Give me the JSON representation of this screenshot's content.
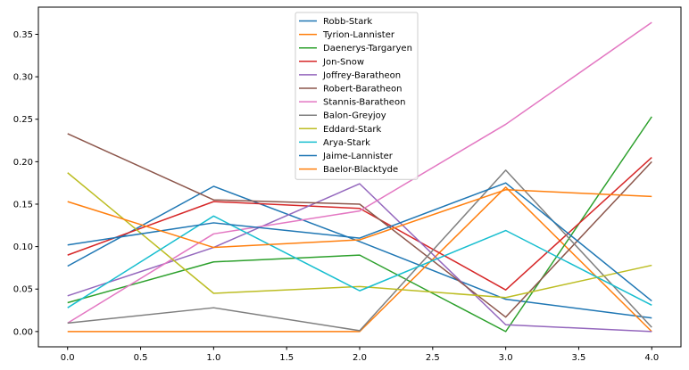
{
  "chart_data": {
    "type": "line",
    "title": "",
    "xlabel": "",
    "ylabel": "",
    "x": [
      0,
      1,
      2,
      3,
      4
    ],
    "xlim": [
      -0.2,
      4.2
    ],
    "ylim": [
      -0.018,
      0.382
    ],
    "xticks": [
      0.0,
      0.5,
      1.0,
      1.5,
      2.0,
      2.5,
      3.0,
      3.5,
      4.0
    ],
    "xtick_labels": [
      "0.0",
      "0.5",
      "1.0",
      "1.5",
      "2.0",
      "2.5",
      "3.0",
      "3.5",
      "4.0"
    ],
    "yticks": [
      0.0,
      0.05,
      0.1,
      0.15,
      0.2,
      0.25,
      0.3,
      0.35
    ],
    "ytick_labels": [
      "0.00",
      "0.05",
      "0.10",
      "0.15",
      "0.20",
      "0.25",
      "0.30",
      "0.35"
    ],
    "grid": false,
    "legend_position": "top-center",
    "series": [
      {
        "name": "Robb-Stark",
        "color": "#1f77b4",
        "values": [
          0.077,
          0.171,
          0.106,
          0.038,
          0.016
        ]
      },
      {
        "name": "Tyrion-Lannister",
        "color": "#ff7f0e",
        "values": [
          0.0,
          0.0,
          0.0,
          0.17,
          0.0
        ]
      },
      {
        "name": "Daenerys-Targaryen",
        "color": "#2ca02c",
        "values": [
          0.034,
          0.082,
          0.09,
          0.0,
          0.253
        ]
      },
      {
        "name": "Jon-Snow",
        "color": "#d62728",
        "values": [
          0.09,
          0.153,
          0.145,
          0.049,
          0.205
        ]
      },
      {
        "name": "Joffrey-Baratheon",
        "color": "#9467bd",
        "values": [
          0.042,
          0.099,
          0.174,
          0.008,
          0.0
        ]
      },
      {
        "name": "Robert-Baratheon",
        "color": "#8c564b",
        "values": [
          0.233,
          0.155,
          0.15,
          0.017,
          0.2
        ]
      },
      {
        "name": "Stannis-Baratheon",
        "color": "#e377c2",
        "values": [
          0.01,
          0.115,
          0.142,
          0.244,
          0.364
        ]
      },
      {
        "name": "Balon-Greyjoy",
        "color": "#7f7f7f",
        "values": [
          0.01,
          0.028,
          0.001,
          0.19,
          0.005
        ]
      },
      {
        "name": "Eddard-Stark",
        "color": "#bcbd22",
        "values": [
          0.187,
          0.045,
          0.053,
          0.04,
          0.078
        ]
      },
      {
        "name": "Arya-Stark",
        "color": "#17becf",
        "values": [
          0.028,
          0.136,
          0.048,
          0.119,
          0.031
        ]
      },
      {
        "name": "Jaime-Lannister",
        "color": "#1f77b4",
        "values": [
          0.102,
          0.128,
          0.11,
          0.175,
          0.036
        ]
      },
      {
        "name": "Baelor-Blacktyde",
        "color": "#ff7f0e",
        "values": [
          0.153,
          0.099,
          0.108,
          0.167,
          0.159
        ]
      }
    ]
  }
}
